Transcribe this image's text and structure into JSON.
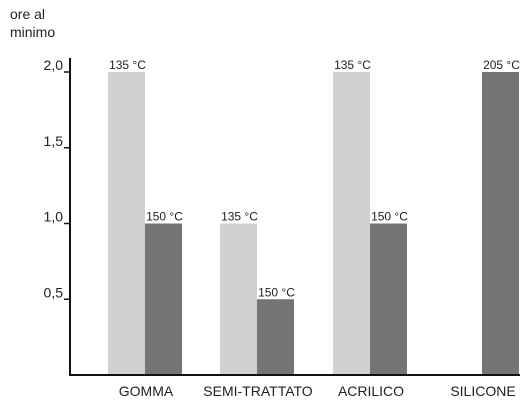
{
  "chart_data": {
    "type": "bar",
    "ylabel_lines": [
      "ore al",
      "minimo"
    ],
    "categories": [
      "GOMMA",
      "SEMI-TRATTATO",
      "ACRILICO",
      "SILICONE"
    ],
    "ylim": [
      0,
      2.0
    ],
    "yticks": [
      {
        "value": 0.5,
        "label": "0,5"
      },
      {
        "value": 1.0,
        "label": "1,0"
      },
      {
        "value": 1.5,
        "label": "1,5"
      },
      {
        "value": 2.0,
        "label": "2,0"
      }
    ],
    "bars": [
      {
        "category": "GOMMA",
        "slot": 0,
        "value": 2.0,
        "label": "135 °C",
        "color": "#d1d1d1"
      },
      {
        "category": "GOMMA",
        "slot": 1,
        "value": 1.0,
        "label": "150 °C",
        "color": "#747474"
      },
      {
        "category": "SEMI-TRATTATO",
        "slot": 0,
        "value": 1.0,
        "label": "135 °C",
        "color": "#d1d1d1"
      },
      {
        "category": "SEMI-TRATTATO",
        "slot": 1,
        "value": 0.5,
        "label": "150 °C",
        "color": "#747474"
      },
      {
        "category": "ACRILICO",
        "slot": 0,
        "value": 2.0,
        "label": "135 °C",
        "color": "#d1d1d1"
      },
      {
        "category": "ACRILICO",
        "slot": 1,
        "value": 1.0,
        "label": "150 °C",
        "color": "#747474"
      },
      {
        "category": "SILICONE",
        "slot": 1,
        "value": 2.0,
        "label": "205 °C",
        "color": "#747474"
      }
    ],
    "grid": false,
    "legend": "none"
  }
}
